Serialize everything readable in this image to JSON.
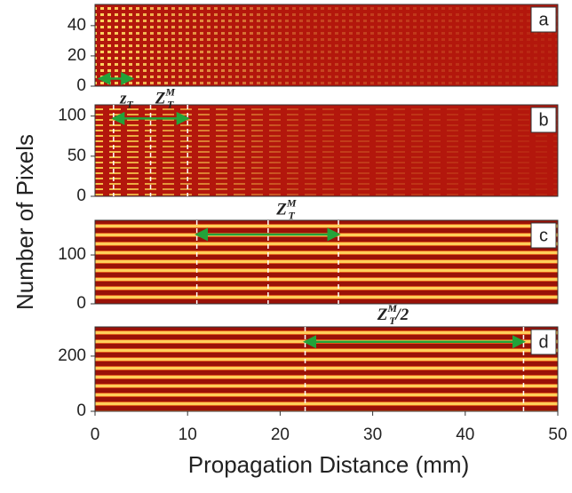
{
  "figure": {
    "ylabel": "Number of Pixels",
    "xlabel": "Propagation Distance (mm)"
  },
  "chart_data": [
    {
      "type": "heatmap",
      "style": "checker",
      "label": "a",
      "xlim": [
        0,
        50
      ],
      "ylim": [
        0,
        54
      ],
      "yticks": [
        0,
        20,
        40
      ],
      "vlines": [],
      "arrow": [
        0.5,
        4
      ],
      "arrow_y": 5,
      "annotations": []
    },
    {
      "type": "heatmap",
      "style": "bands",
      "label": "b",
      "xlim": [
        0,
        50
      ],
      "ylim": [
        0,
        114
      ],
      "yticks": [
        0,
        50,
        100
      ],
      "vlines": [
        2,
        6,
        10
      ],
      "arrow": [
        2,
        10
      ],
      "arrow_y": 97,
      "annotations": [
        {
          "text": "z",
          "sub": "T",
          "x": 2.7,
          "y": 120
        },
        {
          "text": "Z",
          "sub": "T",
          "sup": "M",
          "x": 6.5,
          "y": 120
        }
      ]
    },
    {
      "type": "heatmap",
      "style": "stripes",
      "label": "c",
      "xlim": [
        0,
        50
      ],
      "ylim": [
        0,
        171
      ],
      "yticks": [
        0,
        100
      ],
      "vlines": [
        11,
        18.7,
        26.3
      ],
      "arrow": [
        11,
        26.3
      ],
      "arrow_y": 142,
      "annotations": [
        {
          "text": "Z",
          "sub": "T",
          "sup": "M",
          "x": 19.6,
          "y": 190
        }
      ]
    },
    {
      "type": "heatmap",
      "style": "stripes",
      "label": "d",
      "xlim": [
        0,
        50
      ],
      "ylim": [
        0,
        306
      ],
      "yticks": [
        0,
        200
      ],
      "vlines": [
        22.7,
        46.3
      ],
      "arrow": [
        22.7,
        46.3
      ],
      "arrow_y": 252,
      "annotations": [
        {
          "text": "Z",
          "sub": "T",
          "sup": "M",
          "suffix": "/2",
          "x": 30.5,
          "y": 345
        }
      ],
      "xticks": [
        0,
        10,
        20,
        30,
        40,
        50
      ]
    }
  ]
}
